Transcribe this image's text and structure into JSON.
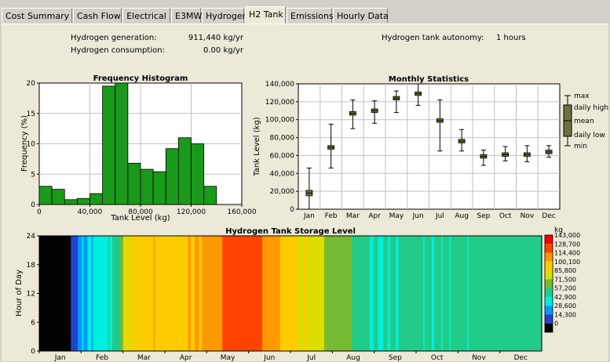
{
  "tabs": [
    {
      "label": "Cost Summary",
      "active": false
    },
    {
      "label": "Cash Flow",
      "active": false
    },
    {
      "label": "Electrical",
      "active": false
    },
    {
      "label": "E3MW",
      "active": false
    },
    {
      "label": "Hydrogen",
      "active": false
    },
    {
      "label": "H2 Tank",
      "active": true
    },
    {
      "label": "Emissions",
      "active": false
    },
    {
      "label": "Hourly Data",
      "active": false
    }
  ],
  "summary": {
    "generation_label": "Hydrogen generation:",
    "generation_value": "911,440 kg/yr",
    "consumption_label": "Hydrogen consumption:",
    "consumption_value": "0.00 kg/yr",
    "autonomy_label": "Hydrogen tank autonomy:",
    "autonomy_value": "1 hours"
  },
  "chart_data": [
    {
      "type": "bar",
      "title": "Frequency Histogram",
      "xlabel": "Tank Level (kg)",
      "ylabel": "Frequency (%)",
      "xlim": [
        0,
        160000
      ],
      "ylim": [
        0,
        20
      ],
      "xticks": [
        "0",
        "40,000",
        "80,000",
        "120,000",
        "160,000"
      ],
      "yticks": [
        "0",
        "5",
        "10",
        "15",
        "20"
      ],
      "bin_width": 10000,
      "bins": [
        {
          "x0": 0,
          "value": 3.0
        },
        {
          "x0": 10000,
          "value": 2.5
        },
        {
          "x0": 20000,
          "value": 0.8
        },
        {
          "x0": 30000,
          "value": 1.0
        },
        {
          "x0": 40000,
          "value": 1.8
        },
        {
          "x0": 50000,
          "value": 19.5
        },
        {
          "x0": 60000,
          "value": 20.0
        },
        {
          "x0": 70000,
          "value": 6.8
        },
        {
          "x0": 80000,
          "value": 5.8
        },
        {
          "x0": 90000,
          "value": 5.4
        },
        {
          "x0": 100000,
          "value": 9.2
        },
        {
          "x0": 110000,
          "value": 11.0
        },
        {
          "x0": 120000,
          "value": 10.0
        },
        {
          "x0": 130000,
          "value": 3.0
        }
      ],
      "color": "#1a9a1a"
    },
    {
      "type": "box",
      "title": "Monthly Statistics",
      "ylabel": "Tank Level (kg)",
      "ylim": [
        0,
        140000
      ],
      "yticks": [
        "0",
        "20,000",
        "40,000",
        "60,000",
        "80,000",
        "100,000",
        "120,000",
        "140,000"
      ],
      "categories": [
        "Jan",
        "Feb",
        "Mar",
        "Apr",
        "May",
        "Jun",
        "Jul",
        "Aug",
        "Sep",
        "Oct",
        "Nov",
        "Dec"
      ],
      "stats": [
        {
          "min": 0,
          "low": 15000,
          "mean": 18000,
          "high": 21000,
          "max": 46000
        },
        {
          "min": 46000,
          "low": 67000,
          "mean": 69000,
          "high": 71000,
          "max": 95000
        },
        {
          "min": 90000,
          "low": 105000,
          "mean": 107000,
          "high": 109000,
          "max": 122000
        },
        {
          "min": 96000,
          "low": 108000,
          "mean": 110000,
          "high": 112000,
          "max": 121000
        },
        {
          "min": 108000,
          "low": 122000,
          "mean": 124000,
          "high": 126000,
          "max": 132000
        },
        {
          "min": 116000,
          "low": 127000,
          "mean": 129000,
          "high": 131000,
          "max": 141000
        },
        {
          "min": 65000,
          "low": 97000,
          "mean": 99000,
          "high": 101000,
          "max": 122000
        },
        {
          "min": 65000,
          "low": 74000,
          "mean": 76000,
          "high": 78000,
          "max": 89000
        },
        {
          "min": 49000,
          "low": 57000,
          "mean": 59000,
          "high": 61000,
          "max": 66000
        },
        {
          "min": 54000,
          "low": 59000,
          "mean": 61000,
          "high": 63000,
          "max": 70000
        },
        {
          "min": 53000,
          "low": 59000,
          "mean": 61000,
          "high": 63000,
          "max": 71000
        },
        {
          "min": 58000,
          "low": 62000,
          "mean": 64000,
          "high": 66000,
          "max": 71000
        }
      ],
      "legend": [
        "max",
        "daily high",
        "mean",
        "daily low",
        "min"
      ]
    },
    {
      "type": "heatmap",
      "title": "Hydrogen Tank Storage Level",
      "ylabel": "Hour of Day",
      "yticks": [
        "0",
        "6",
        "12",
        "18",
        "24"
      ],
      "months": [
        "Jan",
        "Feb",
        "Mar",
        "Apr",
        "May",
        "Jun",
        "Jul",
        "Aug",
        "Sep",
        "Oct",
        "Nov",
        "Dec"
      ],
      "colorbar_unit": "kg",
      "colorbar_labels": [
        "143,000",
        "128,700",
        "114,400",
        "100,100",
        "85,800",
        "71,500",
        "57,200",
        "42,900",
        "28,600",
        "14,300",
        "0"
      ],
      "colorbar_colors": [
        "#ee0000",
        "#ff4400",
        "#ff9900",
        "#ffcc00",
        "#dddd00",
        "#77bb33",
        "#22cc88",
        "#00eedd",
        "#0099ff",
        "#2244cc",
        "#000000"
      ],
      "daily_levels": [
        {
          "day": 1,
          "value": 3000
        },
        {
          "day": 5,
          "value": 2000
        },
        {
          "day": 12,
          "value": 1000
        },
        {
          "day": 20,
          "value": 1500
        },
        {
          "day": 27,
          "value": 24000
        },
        {
          "day": 31,
          "value": 38000
        },
        {
          "day": 38,
          "value": 45000
        },
        {
          "day": 45,
          "value": 52000
        },
        {
          "day": 52,
          "value": 56000
        },
        {
          "day": 58,
          "value": 64000
        },
        {
          "day": 63,
          "value": 96000
        },
        {
          "day": 70,
          "value": 102000
        },
        {
          "day": 78,
          "value": 108000
        },
        {
          "day": 86,
          "value": 111000
        },
        {
          "day": 94,
          "value": 107000
        },
        {
          "day": 102,
          "value": 109000
        },
        {
          "day": 110,
          "value": 112000
        },
        {
          "day": 118,
          "value": 116000
        },
        {
          "day": 124,
          "value": 123000
        },
        {
          "day": 131,
          "value": 121000
        },
        {
          "day": 136,
          "value": 132000
        },
        {
          "day": 142,
          "value": 135000
        },
        {
          "day": 150,
          "value": 139000
        },
        {
          "day": 158,
          "value": 137000
        },
        {
          "day": 166,
          "value": 126000
        },
        {
          "day": 172,
          "value": 120000
        },
        {
          "day": 180,
          "value": 112000
        },
        {
          "day": 186,
          "value": 103000
        },
        {
          "day": 192,
          "value": 99000
        },
        {
          "day": 198,
          "value": 95000
        },
        {
          "day": 203,
          "value": 88000
        },
        {
          "day": 208,
          "value": 82000
        },
        {
          "day": 213,
          "value": 80000
        },
        {
          "day": 218,
          "value": 78000
        },
        {
          "day": 224,
          "value": 74000
        },
        {
          "day": 230,
          "value": 70000
        },
        {
          "day": 236,
          "value": 63000
        },
        {
          "day": 242,
          "value": 58000
        },
        {
          "day": 248,
          "value": 56000
        },
        {
          "day": 256,
          "value": 58000
        },
        {
          "day": 264,
          "value": 60000
        },
        {
          "day": 272,
          "value": 62000
        },
        {
          "day": 280,
          "value": 60000
        },
        {
          "day": 288,
          "value": 59000
        },
        {
          "day": 296,
          "value": 61000
        },
        {
          "day": 304,
          "value": 62000
        },
        {
          "day": 312,
          "value": 60000
        },
        {
          "day": 320,
          "value": 61000
        },
        {
          "day": 328,
          "value": 63000
        },
        {
          "day": 336,
          "value": 62000
        },
        {
          "day": 344,
          "value": 64000
        },
        {
          "day": 352,
          "value": 63000
        },
        {
          "day": 360,
          "value": 65000
        },
        {
          "day": 365,
          "value": 64000
        }
      ]
    }
  ]
}
